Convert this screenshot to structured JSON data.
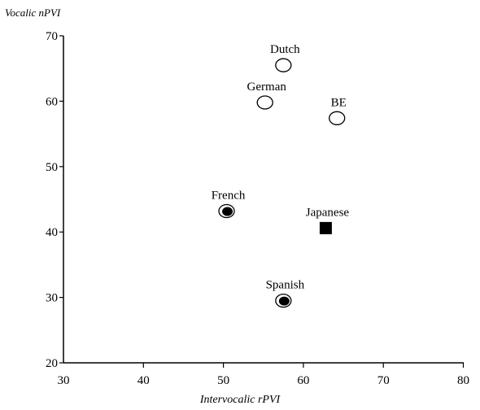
{
  "chart_data": {
    "type": "scatter",
    "title": "",
    "xlabel": "Intervocalic rPVI",
    "ylabel": "Vocalic nPVI",
    "xlim": [
      30,
      85
    ],
    "ylim": [
      20,
      70
    ],
    "xticks": [
      "30",
      "40",
      "50",
      "60",
      "70",
      "80"
    ],
    "yticks": [
      "20",
      "30",
      "40",
      "50",
      "60",
      "70"
    ],
    "grid": false,
    "points": [
      {
        "label": "Dutch",
        "x": 57.5,
        "y": 65.5,
        "marker": "open-circle"
      },
      {
        "label": "German",
        "x": 55.2,
        "y": 59.8,
        "marker": "open-circle"
      },
      {
        "label": "BE",
        "x": 64.2,
        "y": 57.4,
        "marker": "open-circle"
      },
      {
        "label": "French",
        "x": 50.4,
        "y": 43.2,
        "marker": "filled-circle-ring"
      },
      {
        "label": "Japanese",
        "x": 62.8,
        "y": 40.6,
        "marker": "filled-square"
      },
      {
        "label": "Spanish",
        "x": 57.5,
        "y": 29.5,
        "marker": "filled-circle-ring"
      }
    ]
  }
}
